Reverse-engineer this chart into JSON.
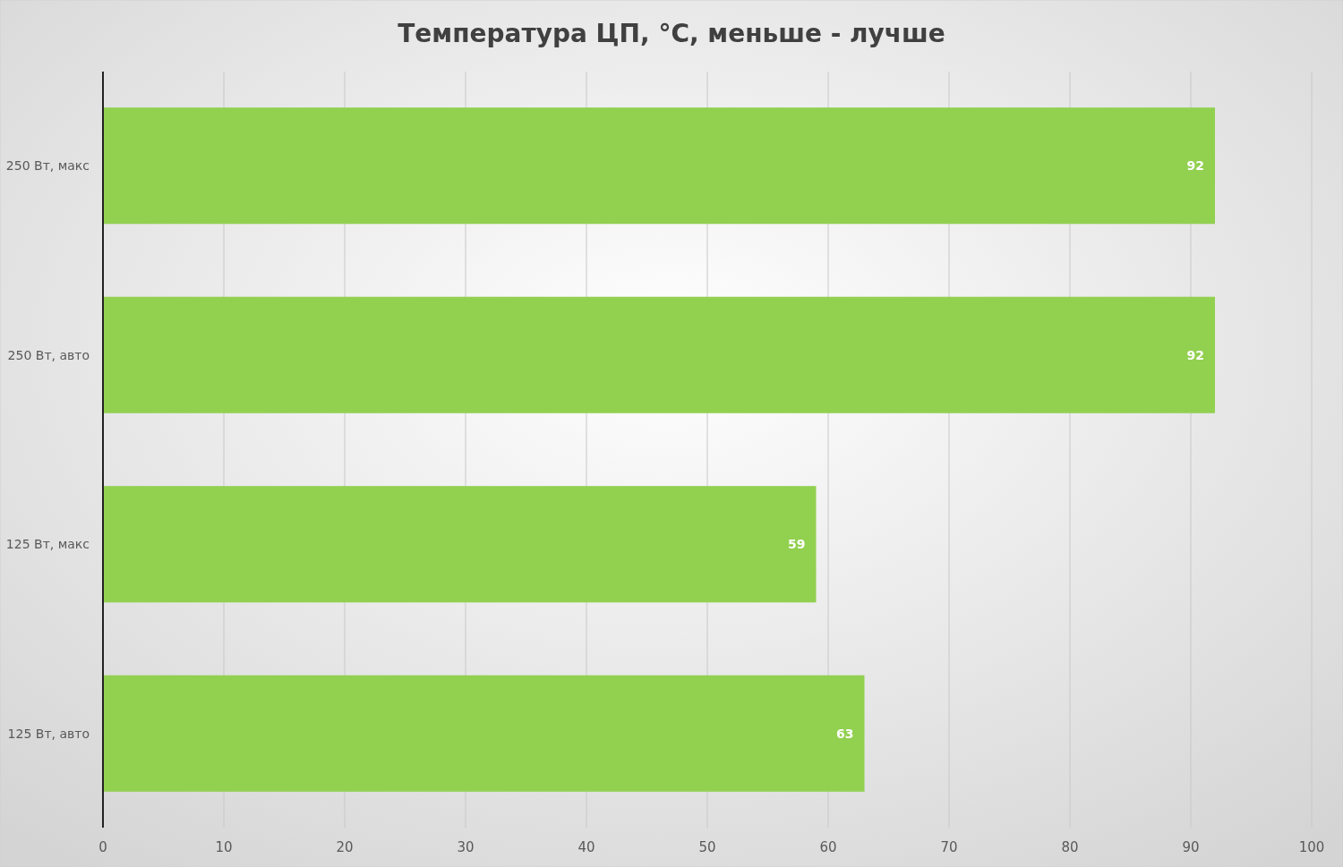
{
  "chart_data": {
    "type": "bar",
    "orientation": "horizontal",
    "title": "Температура ЦП, °C, меньше - лучше",
    "categories": [
      "250 Вт, макс",
      "250 Вт, авто",
      "125 Вт, макс",
      "125 Вт, авто"
    ],
    "values": [
      92,
      92,
      59,
      63
    ],
    "color": "#92d050",
    "xlim": [
      0,
      100
    ],
    "xticks": [
      0,
      10,
      20,
      30,
      40,
      50,
      60,
      70,
      80,
      90,
      100
    ],
    "grid": "x",
    "data_labels": true
  }
}
